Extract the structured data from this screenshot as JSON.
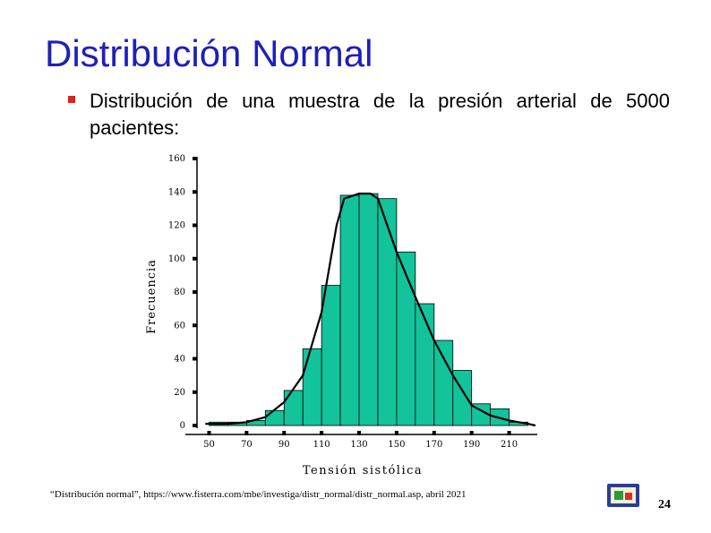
{
  "slide": {
    "title": "Distribución Normal",
    "bullet_text": "Distribución de una muestra de la presión arterial de 5000 pacientes:",
    "citation": "“Distribución normal”, https://www.fisterra.com/mbe/investiga/distr_normal/distr_normal.asp, abril 2021",
    "page_number": "24",
    "nav_icon": "slide-navigation-icon"
  },
  "colors": {
    "title": "#1f1fb8",
    "bullet": "#e0201a",
    "bar_fill": "#12c39b",
    "curve": "#000000"
  },
  "chart_data": {
    "type": "bar",
    "xlabel": "Tensión sistólica",
    "ylabel": "Frecuencia",
    "ylim": [
      0,
      160
    ],
    "yticks": [
      0,
      20,
      40,
      60,
      80,
      100,
      120,
      140,
      160
    ],
    "xlim": [
      45,
      225
    ],
    "xticks": [
      50,
      70,
      90,
      110,
      130,
      150,
      170,
      190,
      210
    ],
    "bin_width": 10,
    "bins": [
      {
        "start": 50,
        "end": 60,
        "value": 2
      },
      {
        "start": 60,
        "end": 70,
        "value": 2
      },
      {
        "start": 70,
        "end": 80,
        "value": 3
      },
      {
        "start": 80,
        "end": 90,
        "value": 9
      },
      {
        "start": 90,
        "end": 100,
        "value": 21
      },
      {
        "start": 100,
        "end": 110,
        "value": 46
      },
      {
        "start": 110,
        "end": 120,
        "value": 84
      },
      {
        "start": 120,
        "end": 130,
        "value": 138
      },
      {
        "start": 130,
        "end": 140,
        "value": 139
      },
      {
        "start": 140,
        "end": 150,
        "value": 136
      },
      {
        "start": 150,
        "end": 160,
        "value": 104
      },
      {
        "start": 160,
        "end": 170,
        "value": 73
      },
      {
        "start": 170,
        "end": 180,
        "value": 51
      },
      {
        "start": 180,
        "end": 190,
        "value": 33
      },
      {
        "start": 190,
        "end": 200,
        "value": 13
      },
      {
        "start": 200,
        "end": 210,
        "value": 10
      },
      {
        "start": 210,
        "end": 220,
        "value": 2
      }
    ],
    "curve": [
      {
        "x": 48,
        "y": 1
      },
      {
        "x": 60,
        "y": 1
      },
      {
        "x": 70,
        "y": 2
      },
      {
        "x": 80,
        "y": 5
      },
      {
        "x": 90,
        "y": 14
      },
      {
        "x": 100,
        "y": 30
      },
      {
        "x": 110,
        "y": 68
      },
      {
        "x": 118,
        "y": 120
      },
      {
        "x": 122,
        "y": 136
      },
      {
        "x": 130,
        "y": 139
      },
      {
        "x": 136,
        "y": 139
      },
      {
        "x": 140,
        "y": 136
      },
      {
        "x": 150,
        "y": 104
      },
      {
        "x": 160,
        "y": 77
      },
      {
        "x": 170,
        "y": 51
      },
      {
        "x": 180,
        "y": 30
      },
      {
        "x": 190,
        "y": 12
      },
      {
        "x": 200,
        "y": 6
      },
      {
        "x": 210,
        "y": 3
      },
      {
        "x": 220,
        "y": 1
      },
      {
        "x": 224,
        "y": 0
      }
    ]
  }
}
